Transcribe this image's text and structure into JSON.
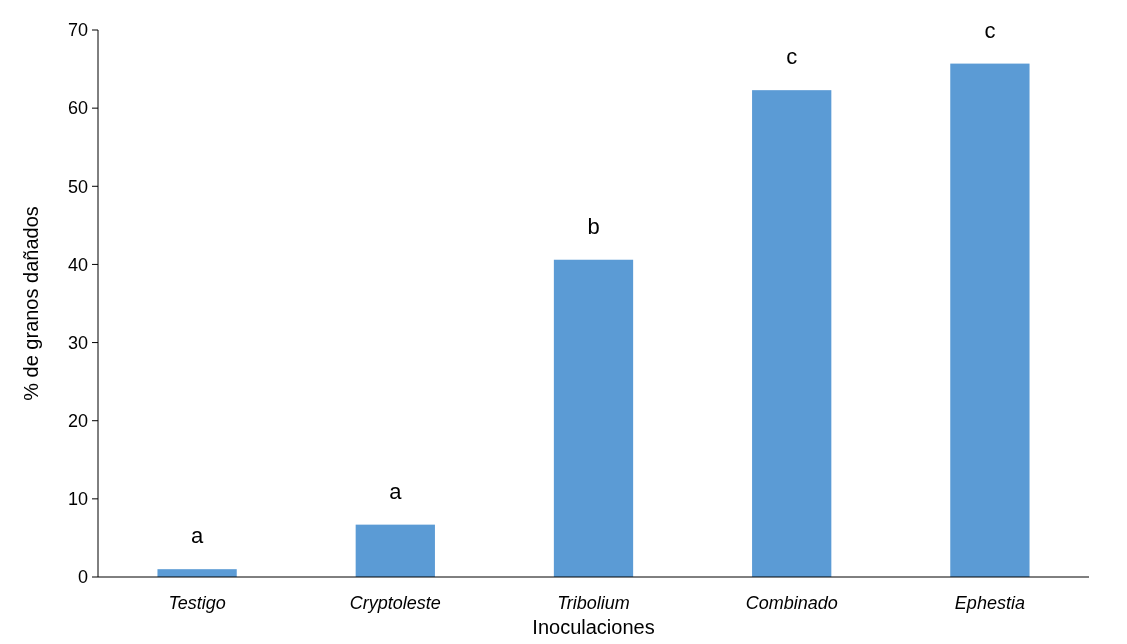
{
  "chart_data": {
    "type": "bar",
    "xlabel": "Inoculaciones",
    "ylabel": "% de granos dañados",
    "categories": [
      "Testigo",
      "Cryptoleste",
      "Tribolium",
      "Combinado",
      "Ephestia"
    ],
    "values": [
      1.0,
      6.7,
      40.6,
      62.3,
      65.7
    ],
    "color": "#5b9bd5",
    "ylim": [
      0,
      70
    ],
    "yticks": [
      0,
      10,
      20,
      30,
      40,
      50,
      60,
      70
    ],
    "grid": false,
    "annotations": [
      {
        "text": "a",
        "x": "Testigo",
        "y": 1.0
      },
      {
        "text": "a",
        "x": "Cryptoleste",
        "y": 6.7
      },
      {
        "text": "b",
        "x": "Tribolium",
        "y": 40.6
      },
      {
        "text": "c",
        "x": "Combinado",
        "y": 62.3
      },
      {
        "text": "c",
        "x": "Ephestia",
        "y": 65.7
      }
    ]
  }
}
